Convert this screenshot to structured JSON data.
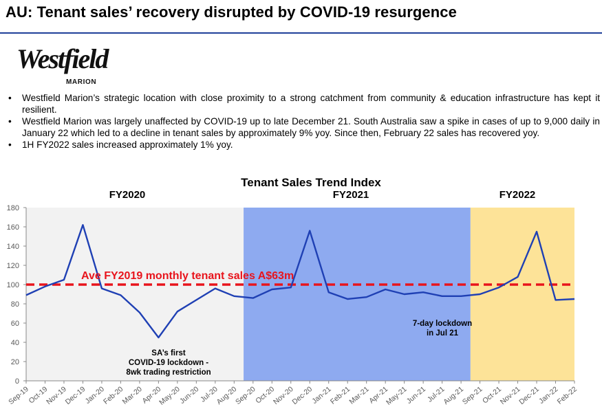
{
  "page": {
    "title": "AU: Tenant sales’ recovery disrupted by COVID-19 resurgence",
    "logo": {
      "name": "Westfield",
      "sub": "MARION"
    },
    "bullets": [
      "Westfield Marion’s strategic location with close proximity to a strong catchment from community & education infrastructure has kept it resilient.",
      "Westfield Marion was largely unaffected by COVID-19 up to late December 21. South Australia saw a spike in cases of up to 9,000 daily in January 22 which led to a decline in tenant sales by approximately 9% yoy. Since then, February 22 sales has recovered yoy.",
      "1H FY2022 sales increased approximately 1% yoy."
    ]
  },
  "colors": {
    "line": "#1f40b4",
    "reference": "#e8141c",
    "fy2020_band": "#f2f2f2",
    "fy2021_band": "#8eaaf0",
    "fy2022_band": "#fde398",
    "title_rule": "#1f3f99"
  },
  "chart_data": {
    "type": "line",
    "title": "Tenant Sales Trend Index",
    "categories": [
      "Sep-19",
      "Oct-19",
      "Nov-19",
      "Dec-19",
      "Jan-20",
      "Feb-20",
      "Mar-20",
      "Apr-20",
      "May-20",
      "Jun-20",
      "Jul-20",
      "Aug-20",
      "Sep-20",
      "Oct-20",
      "Nov-20",
      "Dec-20",
      "Jan-21",
      "Feb-21",
      "Mar-21",
      "Apr-21",
      "May-21",
      "Jun-21",
      "Jul-21",
      "Aug-21",
      "Sep-21",
      "Oct-21",
      "Nov-21",
      "Dec-21",
      "Jan-22",
      "Feb-22"
    ],
    "series": [
      {
        "name": "Tenant Sales Trend Index",
        "values": [
          89,
          98,
          105,
          162,
          96,
          89,
          71,
          45,
          72,
          84,
          96,
          88,
          86,
          95,
          97,
          156,
          92,
          85,
          87,
          95,
          90,
          92,
          88,
          88,
          90,
          97,
          108,
          155,
          84,
          85
        ]
      }
    ],
    "ylim": [
      0,
      180
    ],
    "yticks": [
      0,
      20,
      40,
      60,
      80,
      100,
      120,
      140,
      160,
      180
    ],
    "reference_line": {
      "value": 100,
      "label": "Ave FY2019 monthly tenant sales A$63m"
    },
    "periods": [
      {
        "label": "FY2020",
        "start": "Sep-19",
        "end": "Aug-20"
      },
      {
        "label": "FY2021",
        "start": "Sep-20",
        "end": "Aug-21"
      },
      {
        "label": "FY2022",
        "start": "Sep-21",
        "end": "Feb-22"
      }
    ],
    "annotations": [
      {
        "lines": [
          "SA’s first",
          "COVID-19 lockdown -",
          "8wk trading restriction"
        ],
        "near": "Apr-20"
      },
      {
        "lines": [
          "7-day lockdown",
          "in Jul 21"
        ],
        "near": "Jun-21"
      }
    ]
  }
}
